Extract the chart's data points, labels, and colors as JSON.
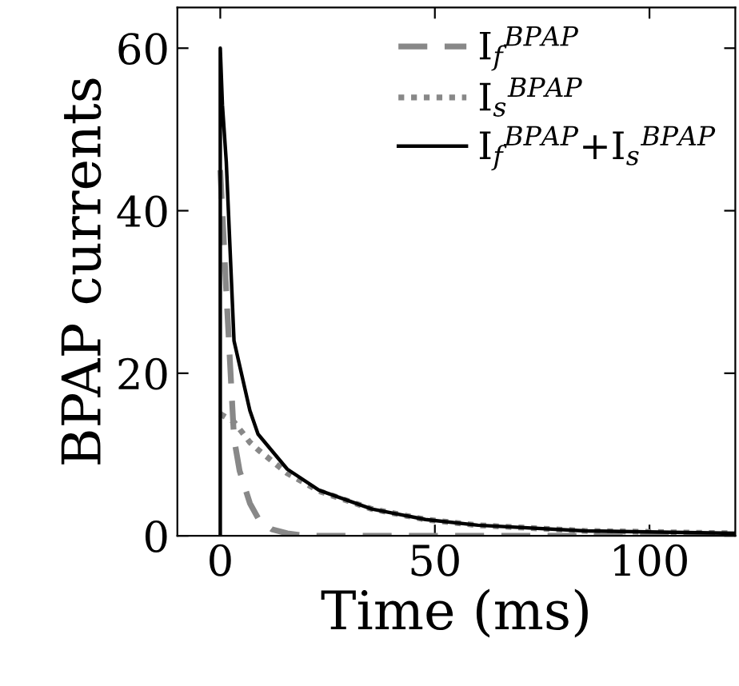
{
  "chart_data": {
    "type": "line",
    "xlabel": "Time (ms)",
    "ylabel": "BPAP currents",
    "xlim": [
      -10,
      120
    ],
    "ylim": [
      0,
      65
    ],
    "xticks": [
      0,
      50,
      100
    ],
    "yticks": [
      0,
      20,
      40,
      60
    ],
    "grid": false,
    "legend": "top right",
    "marker": "none",
    "series": [
      {
        "name": "I$_{f}$$^{BPAP}$",
        "color": "#888888",
        "line_style": "dashed",
        "x": [
          0,
          1.4,
          3.2,
          4.5,
          6.9,
          9,
          12,
          15.6,
          20,
          30,
          50,
          80,
          120
        ],
        "values": [
          45,
          30,
          12,
          8,
          4,
          2,
          0.8,
          0.3,
          0,
          0,
          0,
          0,
          0
        ]
      },
      {
        "name": "I$_{s}$$^{BPAP}$",
        "color": "#888888",
        "line_style": "dotted",
        "x": [
          0,
          3.2,
          6.9,
          9,
          15.6,
          23,
          35.3,
          47.8,
          60,
          85,
          120
        ],
        "values": [
          15,
          14,
          11.5,
          10.5,
          7.7,
          5.5,
          3.3,
          2,
          1.3,
          0.6,
          0.3
        ]
      },
      {
        "name": "I$_{f}$$^{BPAP}$+I$_{s}$$^{BPAP}$",
        "color": "#000000",
        "line_style": "solid",
        "x": [
          0,
          0,
          0.5,
          1.4,
          3.2,
          6.9,
          8.8,
          15.6,
          23,
          35.3,
          47.8,
          60,
          85,
          120
        ],
        "values": [
          0,
          60,
          53,
          46,
          24,
          15.4,
          12.5,
          8.2,
          5.6,
          3.3,
          2,
          1.3,
          0.6,
          0.3
        ]
      }
    ]
  }
}
